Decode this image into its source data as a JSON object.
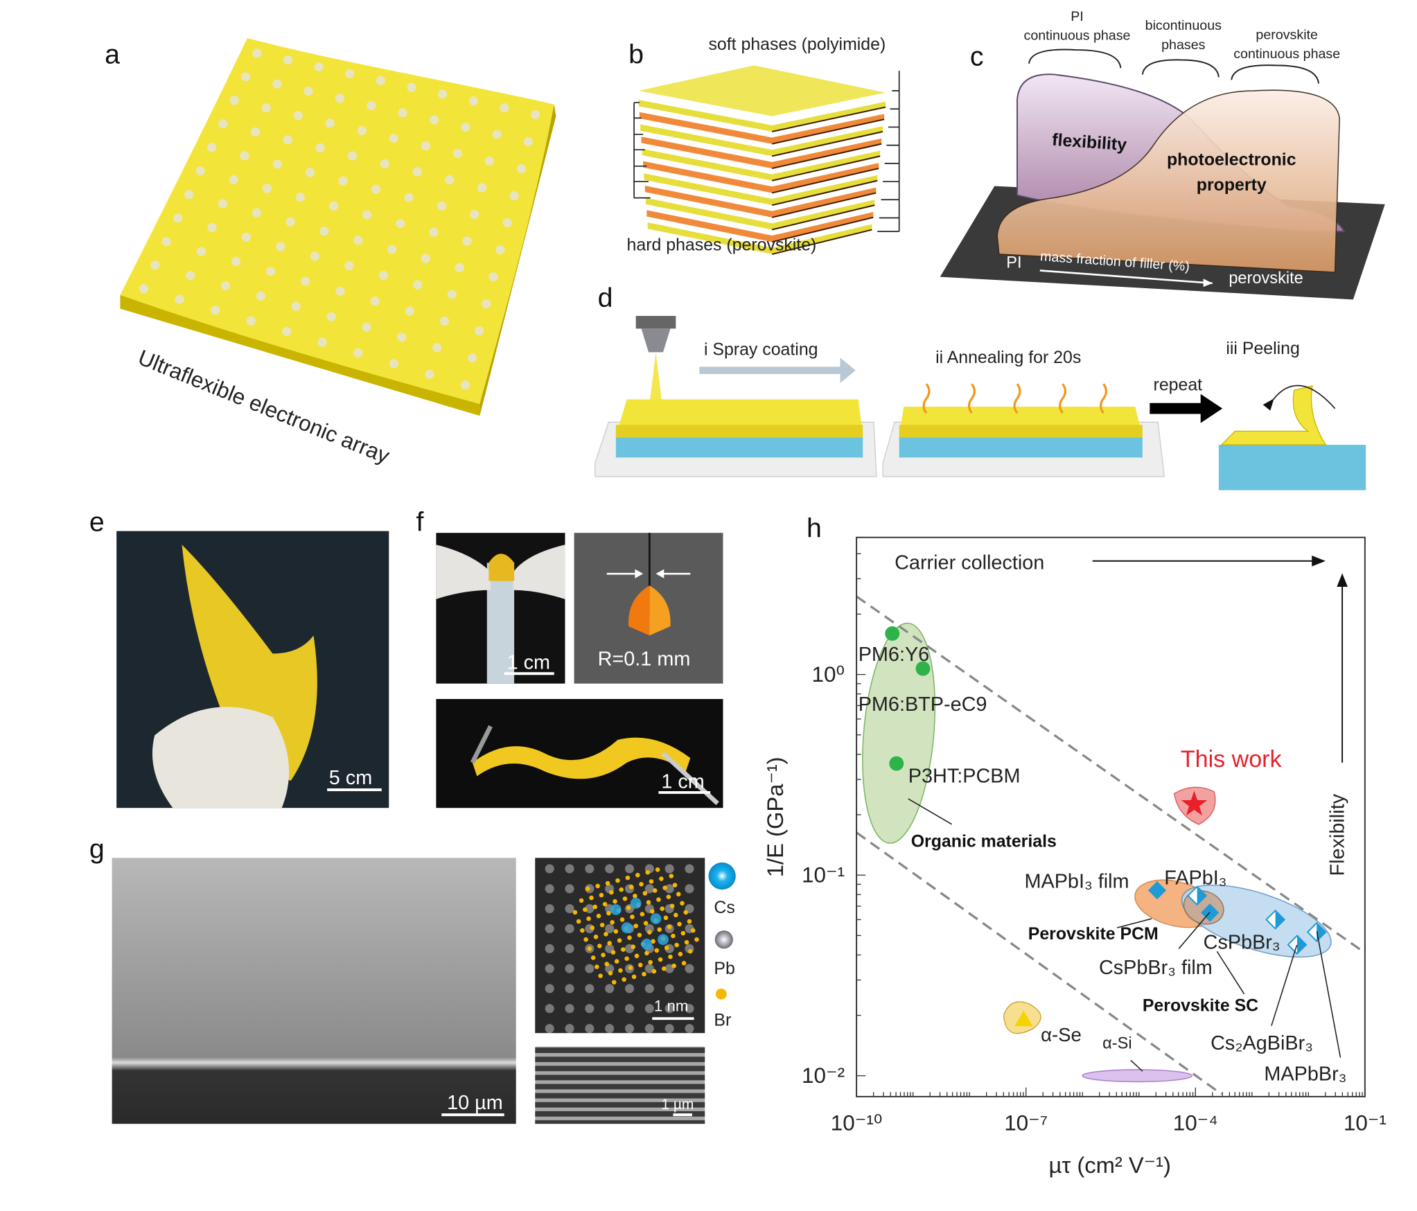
{
  "panels": {
    "a": {
      "label": "a",
      "caption": "Ultraflexible electronic array"
    },
    "b": {
      "label": "b",
      "top_text": "soft phases (polyimide)",
      "bottom_text": "hard phases (perovskite)"
    },
    "c": {
      "label": "c",
      "phase1_line1": "PI",
      "phase1_line2": "continuous phase",
      "phase2_line1": "bicontinuous",
      "phase2_line2": "phases",
      "phase3_line1": "perovskite",
      "phase3_line2": "continuous phase",
      "curve1": "flexibility",
      "curve2_line1": "photoelectronic",
      "curve2_line2": "property",
      "axis_left": "PI",
      "axis_label": "mass fraction of filler (%)",
      "axis_right": "perovskite"
    },
    "d": {
      "label": "d",
      "step1": "i Spray coating",
      "step2": "ii Annealing for 20s",
      "repeat": "repeat",
      "step3": "iii Peeling"
    },
    "e": {
      "label": "e",
      "scale": "5 cm"
    },
    "f": {
      "label": "f",
      "scale1": "1 cm",
      "radius": "R=0.1 mm",
      "scale2": "1 cm"
    },
    "g": {
      "label": "g",
      "scale_sem": "10 µm",
      "scale_tem": "1 nm",
      "scale_cross": "1 µm",
      "legend": [
        {
          "name": "Cs",
          "color": "#1ab4f0"
        },
        {
          "name": "Pb",
          "color": "#8a8a96"
        },
        {
          "name": "Br",
          "color": "#f5b800"
        }
      ]
    },
    "h": {
      "label": "h"
    }
  },
  "colors": {
    "yellow": "#f3e03a",
    "orange": "#f08a3a",
    "substrate_blue": "#6cc3e0",
    "red": "#e8202a"
  },
  "chart_data": {
    "type": "scatter",
    "xlabel": "µτ (cm² V⁻¹)",
    "ylabel": "1/E (GPa⁻¹)",
    "xscale": "log",
    "yscale": "log",
    "xlim": [
      1e-10,
      0.1
    ],
    "ylim": [
      0.0078,
      4.8
    ],
    "xticks": [
      "10⁻¹⁰",
      "10⁻⁷",
      "10⁻⁴",
      "10⁻¹"
    ],
    "xtick_values": [
      1e-10,
      1e-07,
      0.0001,
      0.1
    ],
    "yticks": [
      "10⁰",
      "10⁻¹",
      "10⁻²"
    ],
    "ytick_values": [
      1,
      0.1,
      0.01
    ],
    "annotations": {
      "x_arrow": "Carrier collection",
      "y_arrow": "Flexibility"
    },
    "points": [
      {
        "label": "PM6:Y6",
        "x": 4.3e-10,
        "y": 1.6,
        "marker": "circle",
        "color": "#2db34a"
      },
      {
        "label": "PM6:BTP-eC9",
        "x": 1.5e-09,
        "y": 1.07,
        "marker": "circle",
        "color": "#2db34a"
      },
      {
        "label": "P3HT:PCBM",
        "x": 5.1e-10,
        "y": 0.36,
        "marker": "circle",
        "color": "#2db34a"
      },
      {
        "label": "This work",
        "x": 9.5e-05,
        "y": 0.225,
        "marker": "star",
        "color": "#e8202a"
      },
      {
        "label": "MAPbI₃ film",
        "x": 2.1e-05,
        "y": 0.084,
        "marker": "diamond",
        "color": "#1e9ad6"
      },
      {
        "label": "FAPbI₃",
        "x": 0.000107,
        "y": 0.079,
        "marker": "half-diamond",
        "color": "#1e9ad6"
      },
      {
        "label": "CsPbBr₃ film",
        "x": 0.00018,
        "y": 0.065,
        "marker": "diamond",
        "color": "#1e9ad6"
      },
      {
        "label": "CsPbBr₃",
        "x": 0.0026,
        "y": 0.06,
        "marker": "half-diamond",
        "color": "#1e9ad6"
      },
      {
        "label": "Cs₂AgBiBr₃",
        "x": 0.0063,
        "y": 0.045,
        "marker": "half-diamond",
        "color": "#1e9ad6"
      },
      {
        "label": "MAPbBr₃",
        "x": 0.014,
        "y": 0.052,
        "marker": "half-diamond",
        "color": "#1e9ad6"
      },
      {
        "label": "α-Se",
        "x": 9.1e-08,
        "y": 0.019,
        "marker": "triangle",
        "color": "#f5d400"
      }
    ],
    "regions": [
      {
        "label": "Organic materials",
        "cx": 5.6e-10,
        "cy": 0.51,
        "dx_dec": 0.62,
        "dy_dec": 0.55,
        "tilt": 5,
        "color": "#c9e0b4",
        "stroke": "#6aa84f"
      },
      {
        "label": "Perovskite PCM",
        "cx": 4.5e-05,
        "cy": 0.072,
        "dx_dec": 0.74,
        "dy_dec": 0.11,
        "tilt": 14,
        "color": "#f3a66b",
        "stroke": "#d07a3a"
      },
      {
        "label": "Perovskite SC",
        "cx": 0.0012,
        "cy": 0.059,
        "dx_dec": 1.38,
        "dy_dec": 0.14,
        "tilt": 18,
        "color": "#bcd8ef",
        "stroke": "#5a8fc4"
      },
      {
        "label": "",
        "cx": 0.00014,
        "cy": 0.069,
        "dx_dec": 0.36,
        "dy_dec": 0.08,
        "tilt": 20,
        "color": "#c8a58c",
        "stroke": "#8a6a55"
      },
      {
        "label": "α-Si",
        "cx": 9.3e-06,
        "cy": 0.01,
        "dx_dec": 0.97,
        "dy_dec": 0.03,
        "tilt": 0,
        "color": "#d6b6ea",
        "stroke": "#9a6fc0"
      }
    ],
    "dashed_lines": [
      {
        "x": [
          1e-10,
          0.1
        ],
        "y": [
          2.45,
          0.041
        ]
      },
      {
        "x": [
          1e-10,
          0.00029
        ],
        "y": [
          0.163,
          0.0081
        ]
      }
    ]
  }
}
